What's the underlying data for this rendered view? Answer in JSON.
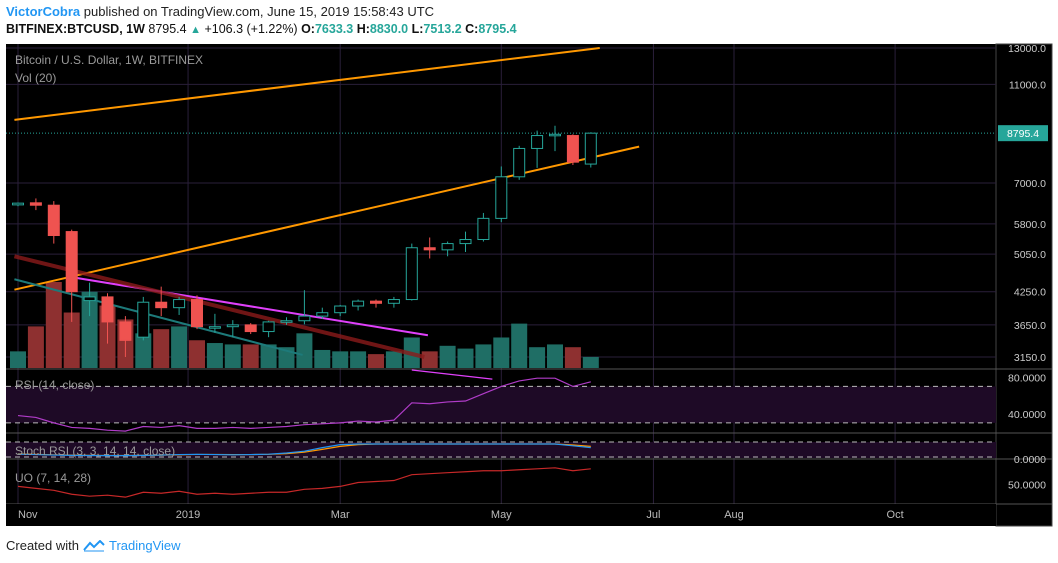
{
  "header": {
    "author": "VictorCobra",
    "published_text": "published on TradingView.com, June 15, 2019 15:58:43 UTC",
    "symbol": "BITFINEX:BTCUSD, 1W",
    "last": "8795.4",
    "change": "+106.3 (+1.22%)",
    "o_label": "O:",
    "o_value": "7633.3",
    "h_label": "H:",
    "h_value": "8830.0",
    "l_label": "L:",
    "l_value": "7513.2",
    "c_label": "C:",
    "c_value": "8795.4"
  },
  "footer": {
    "created_with": "Created with",
    "brand": "TradingView"
  },
  "colors": {
    "background": "#000000",
    "bull": "#26a69a",
    "bear": "#ef5350",
    "channel": "#ff9800",
    "trendline": "#e040fb",
    "rsi": "#b03cc8",
    "stoch": "#2196f3",
    "uo": "#c62828"
  },
  "chart_data": {
    "type": "candlestick",
    "title": "Bitcoin / U.S. Dollar, 1W, BITFINEX",
    "volume_label": "Vol (20)",
    "last_price_label": "8795.4",
    "price_ticks": [
      "13000.0",
      "11000.0",
      "8795.4",
      "7000.0",
      "5800.0",
      "5050.0",
      "4250.0",
      "3650.0",
      "3150.0"
    ],
    "price_tick_values": [
      13000,
      11000,
      8795.4,
      7000,
      5800,
      5050,
      4250,
      3650,
      3150
    ],
    "x_tick_labels": [
      "Nov",
      "2019",
      "Mar",
      "May",
      "Jul",
      "Aug",
      "Oct"
    ],
    "x_tick_weeks": [
      0,
      9.5,
      18,
      27,
      35.5,
      40,
      49
    ],
    "candles": [
      {
        "o": 6330,
        "h": 6400,
        "l": 6290,
        "c": 6380
      },
      {
        "o": 6390,
        "h": 6520,
        "l": 6180,
        "c": 6320
      },
      {
        "o": 6320,
        "h": 6440,
        "l": 5300,
        "c": 5500
      },
      {
        "o": 5600,
        "h": 5650,
        "l": 3700,
        "c": 4250
      },
      {
        "o": 4080,
        "h": 4430,
        "l": 3800,
        "c": 4150
      },
      {
        "o": 4150,
        "h": 4220,
        "l": 3350,
        "c": 3700
      },
      {
        "o": 3700,
        "h": 3800,
        "l": 3150,
        "c": 3400
      },
      {
        "o": 3450,
        "h": 4150,
        "l": 3400,
        "c": 4050
      },
      {
        "o": 4050,
        "h": 4350,
        "l": 3800,
        "c": 3950
      },
      {
        "o": 3950,
        "h": 4150,
        "l": 3820,
        "c": 4100
      },
      {
        "o": 4100,
        "h": 4180,
        "l": 3580,
        "c": 3620
      },
      {
        "o": 3620,
        "h": 3840,
        "l": 3520,
        "c": 3620
      },
      {
        "o": 3620,
        "h": 3730,
        "l": 3450,
        "c": 3650
      },
      {
        "o": 3650,
        "h": 3680,
        "l": 3500,
        "c": 3540
      },
      {
        "o": 3540,
        "h": 3720,
        "l": 3450,
        "c": 3700
      },
      {
        "o": 3700,
        "h": 3780,
        "l": 3650,
        "c": 3720
      },
      {
        "o": 3720,
        "h": 4280,
        "l": 3660,
        "c": 3800
      },
      {
        "o": 3800,
        "h": 3950,
        "l": 3750,
        "c": 3860
      },
      {
        "o": 3860,
        "h": 4000,
        "l": 3800,
        "c": 3980
      },
      {
        "o": 3980,
        "h": 4100,
        "l": 3900,
        "c": 4070
      },
      {
        "o": 4070,
        "h": 4100,
        "l": 3950,
        "c": 4030
      },
      {
        "o": 4030,
        "h": 4150,
        "l": 3950,
        "c": 4100
      },
      {
        "o": 4100,
        "h": 5300,
        "l": 4080,
        "c": 5200
      },
      {
        "o": 5200,
        "h": 5450,
        "l": 4950,
        "c": 5150
      },
      {
        "o": 5150,
        "h": 5350,
        "l": 5000,
        "c": 5300
      },
      {
        "o": 5300,
        "h": 5600,
        "l": 5100,
        "c": 5400
      },
      {
        "o": 5400,
        "h": 6100,
        "l": 5350,
        "c": 5950
      },
      {
        "o": 5950,
        "h": 7550,
        "l": 5850,
        "c": 7200
      },
      {
        "o": 7200,
        "h": 8300,
        "l": 7100,
        "c": 8200
      },
      {
        "o": 8200,
        "h": 8900,
        "l": 7500,
        "c": 8700
      },
      {
        "o": 8700,
        "h": 9100,
        "l": 8100,
        "c": 8750
      },
      {
        "o": 8700,
        "h": 8750,
        "l": 7600,
        "c": 7700
      },
      {
        "o": 7633.3,
        "h": 8830,
        "l": 7513.2,
        "c": 8795.4
      }
    ],
    "volume": [
      12,
      30,
      62,
      40,
      55,
      45,
      35,
      25,
      28,
      30,
      20,
      18,
      17,
      17,
      17,
      15,
      25,
      13,
      12,
      12,
      10,
      12,
      22,
      12,
      16,
      14,
      17,
      22,
      32,
      15,
      17,
      15,
      8
    ],
    "volume_relative_to_largest": true,
    "channel": {
      "label": "orange channel",
      "upper": [
        {
          "week": -0.2,
          "price": 9350
        },
        {
          "week": 32.5,
          "price": 13000
        }
      ],
      "lower": [
        {
          "week": -0.2,
          "price": 4290
        },
        {
          "week": 34.7,
          "price": 8270
        }
      ]
    },
    "trendlines": [
      {
        "color": "magenta",
        "from": {
          "week": 2.9,
          "price": 4550
        },
        "to": {
          "week": 22.9,
          "price": 3480
        }
      },
      {
        "color": "darkred",
        "from": {
          "week": -0.2,
          "price": 5000
        },
        "to": {
          "week": 22.7,
          "price": 3150
        }
      },
      {
        "color": "teal",
        "from": {
          "week": -0.2,
          "price": 4500
        },
        "to": {
          "week": 15.9,
          "price": 3180
        }
      }
    ],
    "rsi": {
      "label": "RSI (14, close)",
      "ticks": [
        "80.0000",
        "40.0000"
      ],
      "tick_values": [
        80,
        40
      ],
      "bands": [
        70,
        30
      ],
      "values": [
        38,
        36,
        30,
        25,
        24,
        22,
        21,
        26,
        25,
        27,
        24,
        24,
        25,
        24,
        25,
        26,
        28,
        29,
        30,
        32,
        31,
        33,
        52,
        51,
        53,
        54,
        62,
        70,
        76,
        79,
        79,
        70,
        75
      ]
    },
    "stoch_rsi": {
      "label": "Stoch RSI (3, 3, 14, 14, close)",
      "ticks": [
        "0.0000"
      ],
      "tick_values": [
        0
      ],
      "k_values": [
        15,
        12,
        8,
        5,
        4,
        3,
        3,
        5,
        8,
        12,
        14,
        12,
        10,
        12,
        15,
        25,
        40,
        70,
        95,
        100,
        100,
        100,
        100,
        100,
        100,
        100,
        100,
        100,
        100,
        100,
        100,
        85,
        70
      ],
      "d_values": [
        18,
        14,
        10,
        7,
        5,
        4,
        4,
        5,
        7,
        10,
        13,
        13,
        12,
        12,
        14,
        20,
        32,
        55,
        80,
        95,
        100,
        100,
        100,
        100,
        100,
        100,
        100,
        100,
        100,
        100,
        100,
        92,
        80
      ]
    },
    "uo": {
      "label": "UO (7, 14, 28)",
      "ticks": [
        "50.0000"
      ],
      "tick_values": [
        50
      ],
      "values": [
        48,
        46,
        44,
        40,
        38,
        39,
        37,
        42,
        41,
        43,
        40,
        41,
        40,
        41,
        42,
        42,
        45,
        46,
        48,
        52,
        53,
        54,
        60,
        61,
        62,
        63,
        64,
        64,
        65,
        66,
        67,
        64,
        66
      ]
    }
  }
}
